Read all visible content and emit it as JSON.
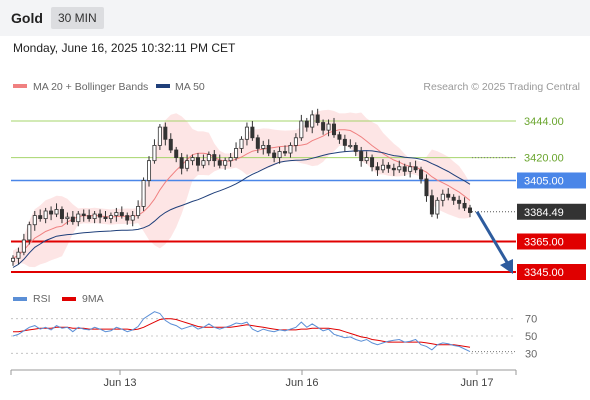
{
  "header": {
    "symbol": "Gold",
    "timeframe": "30 MIN"
  },
  "datetime": "Monday, June 16, 2025 10:32:11 PM CET",
  "legend": {
    "ma20": "MA 20 + Bollinger Bands",
    "ma50": "MA 50",
    "copyright": "Research © 2025 Trading Central"
  },
  "rsi_legend": {
    "rsi": "RSI",
    "ma": "9MA"
  },
  "colors": {
    "green_level": "#a6d46b",
    "blue_level": "#4a86e8",
    "red_level": "#e00000",
    "arrow": "#2e5c9e",
    "candle": "#333333",
    "ma20": "#f08080",
    "ma50": "#1f3f7a",
    "band_fill": "#fde0e0",
    "rsi_line": "#5b8fd6",
    "rsi_ma": "#e00000"
  },
  "chart_data": {
    "type": "candlestick",
    "y_axis": {
      "min": 3335,
      "max": 3455,
      "unit": "USD"
    },
    "x_ticks": [
      "Jun 13",
      "Jun 16",
      "Jun 17"
    ],
    "last_price": 3384.49,
    "levels": [
      {
        "label": "3444.00",
        "value": 3444.0,
        "kind": "resistance"
      },
      {
        "label": "3420.00",
        "value": 3420.0,
        "kind": "resistance"
      },
      {
        "label": "3405.00",
        "value": 3405.0,
        "kind": "pivot"
      },
      {
        "label": "3384.49",
        "value": 3384.49,
        "kind": "last"
      },
      {
        "label": "3365.00",
        "value": 3365.0,
        "kind": "support"
      },
      {
        "label": "3345.00",
        "value": 3345.0,
        "kind": "support"
      }
    ],
    "close_path": [
      3354,
      3358,
      3366,
      3376,
      3382,
      3380,
      3385,
      3383,
      3386,
      3380,
      3381,
      3378,
      3383,
      3382,
      3380,
      3383,
      3381,
      3380,
      3382,
      3384,
      3382,
      3379,
      3382,
      3388,
      3405,
      3418,
      3428,
      3440,
      3432,
      3425,
      3420,
      3413,
      3418,
      3420,
      3415,
      3418,
      3422,
      3418,
      3415,
      3418,
      3420,
      3426,
      3432,
      3440,
      3433,
      3426,
      3428,
      3423,
      3420,
      3424,
      3423,
      3428,
      3433,
      3444,
      3440,
      3448,
      3443,
      3438,
      3442,
      3435,
      3432,
      3428,
      3428,
      3424,
      3418,
      3420,
      3414,
      3412,
      3415,
      3413,
      3412,
      3414,
      3411,
      3414,
      3412,
      3406,
      3395,
      3383,
      3392,
      3396,
      3394,
      3392,
      3390,
      3387,
      3384
    ],
    "rsi": {
      "ticks": [
        70,
        50,
        30
      ],
      "range": [
        20,
        80
      ],
      "values": [
        50,
        52,
        56,
        60,
        62,
        58,
        60,
        57,
        62,
        59,
        60,
        55,
        60,
        58,
        57,
        60,
        58,
        55,
        56,
        60,
        58,
        55,
        57,
        61,
        70,
        74,
        78,
        76,
        68,
        64,
        62,
        58,
        60,
        62,
        58,
        60,
        64,
        60,
        58,
        60,
        62,
        65,
        64,
        66,
        58,
        55,
        58,
        56,
        55,
        57,
        56,
        58,
        60,
        66,
        60,
        64,
        60,
        56,
        58,
        52,
        50,
        48,
        49,
        46,
        44,
        46,
        42,
        40,
        42,
        44,
        45,
        46,
        43,
        44,
        46,
        40,
        38,
        34,
        40,
        42,
        41,
        39,
        38,
        35,
        32
      ],
      "ma": [
        55,
        55,
        56,
        57,
        58,
        59,
        59,
        59,
        60,
        60,
        60,
        59,
        59,
        59,
        58,
        58,
        58,
        58,
        58,
        58,
        58,
        58,
        57,
        58,
        60,
        63,
        66,
        69,
        70,
        70,
        69,
        67,
        65,
        63,
        61,
        60,
        60,
        60,
        60,
        60,
        60,
        61,
        62,
        63,
        62,
        61,
        60,
        59,
        58,
        57,
        57,
        57,
        57,
        58,
        58,
        59,
        59,
        59,
        59,
        58,
        57,
        55,
        53,
        51,
        49,
        48,
        46,
        45,
        44,
        43,
        43,
        43,
        43,
        43,
        43,
        43,
        42,
        41,
        40,
        40,
        40,
        40,
        39,
        38,
        37
      ]
    }
  }
}
